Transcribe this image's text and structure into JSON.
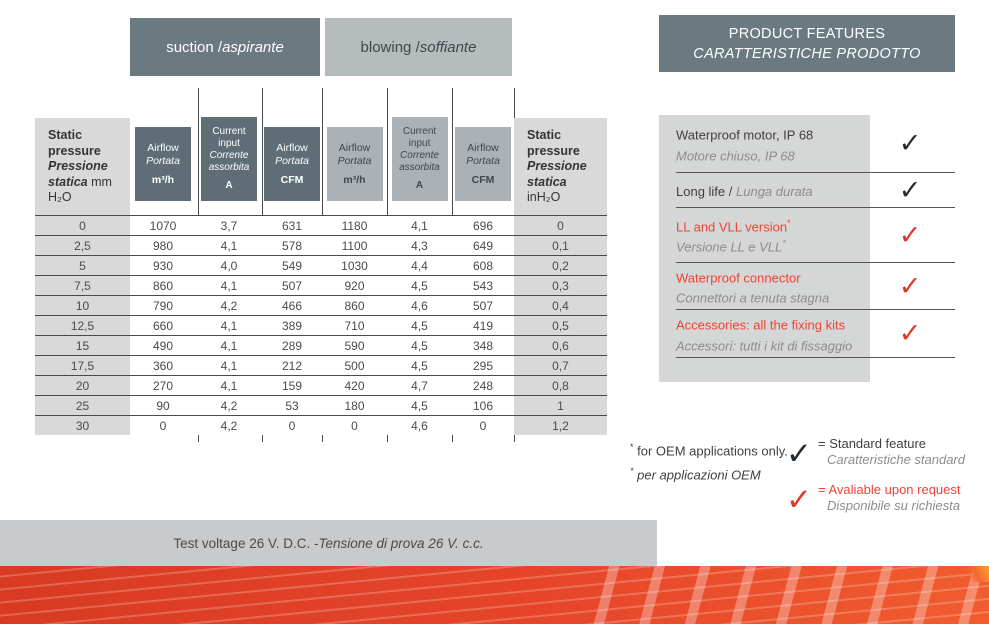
{
  "sections": {
    "suction_en": "suction / ",
    "suction_it": "aspirante",
    "blowing_en": "blowing / ",
    "blowing_it": "soffiante",
    "features_line1": "PRODUCT FEATURES",
    "features_line2": "CARATTERISTICHE PRODOTTO"
  },
  "table": {
    "static_left": {
      "en": "Static pressure",
      "it": "Pressione statica",
      "unit": "mm H₂O"
    },
    "static_right": {
      "en": "Static pressure",
      "it": "Pressione statica",
      "unit": "inH₂O"
    },
    "airflow_en": "Airflow",
    "airflow_it": "Portata",
    "current_en": "Current input",
    "current_it": "Corrente assorbita",
    "unit_m3h": "m³/h",
    "unit_cfm": "CFM",
    "unit_a": "A",
    "rows": [
      [
        "0",
        "1070",
        "3,7",
        "631",
        "1180",
        "4,1",
        "696",
        "0"
      ],
      [
        "2,5",
        "980",
        "4,1",
        "578",
        "1100",
        "4,3",
        "649",
        "0,1"
      ],
      [
        "5",
        "930",
        "4,0",
        "549",
        "1030",
        "4,4",
        "608",
        "0,2"
      ],
      [
        "7,5",
        "860",
        "4,1",
        "507",
        "920",
        "4,5",
        "543",
        "0,3"
      ],
      [
        "10",
        "790",
        "4,2",
        "466",
        "860",
        "4,6",
        "507",
        "0,4"
      ],
      [
        "12,5",
        "660",
        "4,1",
        "389",
        "710",
        "4,5",
        "419",
        "0,5"
      ],
      [
        "15",
        "490",
        "4,1",
        "289",
        "590",
        "4,5",
        "348",
        "0,6"
      ],
      [
        "17,5",
        "360",
        "4,1",
        "212",
        "500",
        "4,5",
        "295",
        "0,7"
      ],
      [
        "20",
        "270",
        "4,1",
        "159",
        "420",
        "4,7",
        "248",
        "0,8"
      ],
      [
        "25",
        "90",
        "4,2",
        "53",
        "180",
        "4,5",
        "106",
        "1"
      ],
      [
        "30",
        "0",
        "4,2",
        "0",
        "0",
        "4,6",
        "0",
        "1,2"
      ]
    ]
  },
  "features": {
    "items": [
      {
        "title": "Waterproof motor, IP 68",
        "title_sup": "",
        "subtitle": "Motore chiuso, IP 68",
        "subtitle_sup": "",
        "color": "dark",
        "check": "black",
        "inline": false
      },
      {
        "title": "Long life / ",
        "title_sup": "",
        "subtitle": "Lunga durata",
        "subtitle_sup": "",
        "color": "dark",
        "check": "black",
        "inline": true
      },
      {
        "title": "LL and VLL version",
        "title_sup": "*",
        "subtitle": "Versione LL e VLL",
        "subtitle_sup": "*",
        "color": "red",
        "check": "red",
        "inline": false
      },
      {
        "title": "Waterproof connector",
        "title_sup": "",
        "subtitle": "Connettori a tenuta stagna",
        "subtitle_sup": "",
        "color": "red",
        "check": "red",
        "inline": false
      },
      {
        "title": "Accessories: all the fixing kits",
        "title_sup": "",
        "subtitle": "Accessori: tutti i kit di fissaggio",
        "subtitle_sup": "",
        "color": "red",
        "check": "red",
        "inline": false
      }
    ]
  },
  "footnotes": {
    "en_sup": "*",
    "en_text": " for OEM applications only.",
    "it_sup": "*",
    "it_text": " per applicazioni OEM"
  },
  "legend": {
    "items": [
      {
        "check": "black",
        "label": "= Standard feature",
        "sublabel": "Caratteristiche standard",
        "color": "dark"
      },
      {
        "check": "red",
        "label": "= Avaliable upon request",
        "sublabel": "Disponibile su richiesta",
        "color": "red"
      }
    ]
  },
  "footer": {
    "en": "Test voltage 26 V. D.C. - ",
    "it": "Tensione di prova 26 V. c.c."
  },
  "icons": {
    "check": "✓"
  },
  "colors": {
    "dark_slate": "#6b7980",
    "blowing_bg": "#b6bcbe",
    "col_dark": "#5e6d76",
    "col_light": "#aab2b6",
    "static_bg": "#d9d9d9",
    "panel_bg": "#d5d6d6",
    "red_text": "#ed4435",
    "red_check": "#dc392a",
    "check_dark": "#232b34",
    "band_left": "#d83a22",
    "band_right": "#f05c2e",
    "footer_bg": "#c9cacb"
  }
}
